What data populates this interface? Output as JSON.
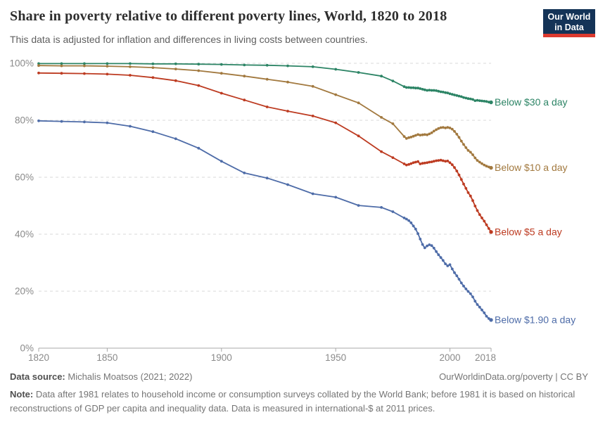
{
  "header": {
    "title": "Share in poverty relative to different poverty lines, World, 1820 to 2018",
    "subtitle": "This data is adjusted for inflation and differences in living costs between countries.",
    "logo": {
      "line1": "Our World",
      "line2": "in Data",
      "bg_color": "#143357",
      "bar_color": "#dc3a2f"
    }
  },
  "chart_data": {
    "type": "line",
    "title": "Share in poverty relative to different poverty lines, World, 1820 to 2018",
    "xlabel": "",
    "ylabel": "",
    "xlim": [
      1820,
      2019
    ],
    "ylim": [
      0,
      100
    ],
    "xticks": [
      1820,
      1850,
      1900,
      1950,
      2000,
      2018
    ],
    "yticks": [
      0,
      20,
      40,
      60,
      80,
      100
    ],
    "ytick_suffix": "%",
    "grid": "horizontal-dashed",
    "legend_position": "end-of-line-labels",
    "x": [
      1820,
      1830,
      1840,
      1850,
      1860,
      1870,
      1880,
      1890,
      1900,
      1910,
      1920,
      1929,
      1940,
      1950,
      1960,
      1970,
      1975,
      1980,
      1981,
      1982,
      1983,
      1984,
      1985,
      1986,
      1987,
      1988,
      1989,
      1990,
      1991,
      1992,
      1993,
      1994,
      1995,
      1996,
      1997,
      1998,
      1999,
      2000,
      2001,
      2002,
      2003,
      2004,
      2005,
      2006,
      2007,
      2008,
      2009,
      2010,
      2011,
      2012,
      2013,
      2014,
      2015,
      2016,
      2017,
      2018
    ],
    "series": [
      {
        "name": "Below $30 a day",
        "color": "#2c8465",
        "values": [
          99.9,
          99.9,
          99.9,
          99.9,
          99.9,
          99.8,
          99.8,
          99.7,
          99.6,
          99.4,
          99.3,
          99.1,
          98.8,
          97.9,
          96.8,
          95.5,
          93.8,
          91.8,
          91.5,
          91.5,
          91.4,
          91.4,
          91.3,
          91.3,
          91.1,
          90.9,
          90.7,
          90.5,
          90.6,
          90.5,
          90.5,
          90.4,
          90.2,
          90.0,
          89.9,
          89.7,
          89.6,
          89.3,
          89.1,
          88.9,
          88.7,
          88.5,
          88.3,
          88.0,
          87.8,
          87.6,
          87.5,
          87.3,
          86.9,
          87.0,
          86.9,
          86.8,
          86.7,
          86.6,
          86.4,
          86.3
        ]
      },
      {
        "name": "Below $10 a day",
        "color": "#a2793f",
        "values": [
          99.2,
          99.1,
          99.1,
          99.0,
          98.8,
          98.5,
          98.0,
          97.4,
          96.5,
          95.5,
          94.4,
          93.4,
          91.9,
          89.0,
          86.1,
          81.0,
          78.8,
          74.3,
          73.6,
          73.9,
          74.1,
          74.4,
          74.7,
          75.0,
          74.8,
          74.9,
          75.0,
          74.9,
          75.2,
          75.6,
          76.2,
          76.7,
          77.1,
          77.4,
          77.5,
          77.3,
          77.5,
          77.3,
          76.9,
          76.1,
          75.1,
          74.0,
          72.7,
          71.5,
          70.4,
          69.4,
          68.8,
          67.9,
          66.8,
          65.9,
          65.3,
          64.8,
          64.3,
          63.9,
          63.6,
          63.3
        ]
      },
      {
        "name": "Below $5 a day",
        "color": "#bd3b21",
        "values": [
          96.6,
          96.5,
          96.4,
          96.2,
          95.8,
          95.0,
          93.9,
          92.2,
          89.5,
          87.1,
          84.7,
          83.2,
          81.5,
          79.1,
          74.5,
          69.0,
          66.9,
          64.7,
          64.3,
          64.5,
          64.8,
          65.1,
          65.3,
          65.5,
          64.7,
          64.9,
          65.0,
          65.1,
          65.3,
          65.4,
          65.6,
          65.8,
          65.9,
          66.0,
          65.8,
          65.6,
          65.7,
          65.1,
          64.4,
          63.4,
          62.2,
          60.8,
          59.2,
          57.6,
          56.1,
          54.6,
          53.4,
          51.8,
          49.9,
          48.3,
          46.9,
          45.7,
          44.6,
          43.3,
          42.0,
          40.8
        ]
      },
      {
        "name": "Below $1.90 a day",
        "color": "#4e6ca8",
        "values": [
          79.8,
          79.6,
          79.4,
          79.1,
          77.9,
          76.0,
          73.5,
          70.2,
          65.6,
          61.5,
          59.7,
          57.4,
          54.2,
          53.0,
          50.1,
          49.4,
          47.9,
          45.7,
          45.3,
          44.8,
          44.0,
          42.9,
          41.8,
          40.2,
          38.3,
          36.4,
          35.2,
          35.9,
          36.3,
          36.0,
          35.1,
          33.9,
          32.8,
          31.8,
          30.8,
          29.6,
          28.9,
          29.3,
          27.8,
          26.5,
          25.4,
          24.2,
          22.9,
          21.8,
          20.8,
          19.9,
          19.1,
          18.0,
          16.5,
          15.3,
          14.4,
          13.4,
          12.4,
          11.2,
          10.4,
          9.9
        ]
      }
    ]
  },
  "footer": {
    "source_label": "Data source:",
    "source_value": " Michalis Moatsos (2021; 2022)",
    "link": "OurWorldinData.org/poverty | CC BY",
    "note_label": "Note:",
    "note_value": " Data after 1981 relates to household income or consumption surveys collated by the World Bank; before 1981 it is based on historical reconstructions of GDP per capita and inequality data. Data is measured in international-$ at 2011 prices."
  }
}
